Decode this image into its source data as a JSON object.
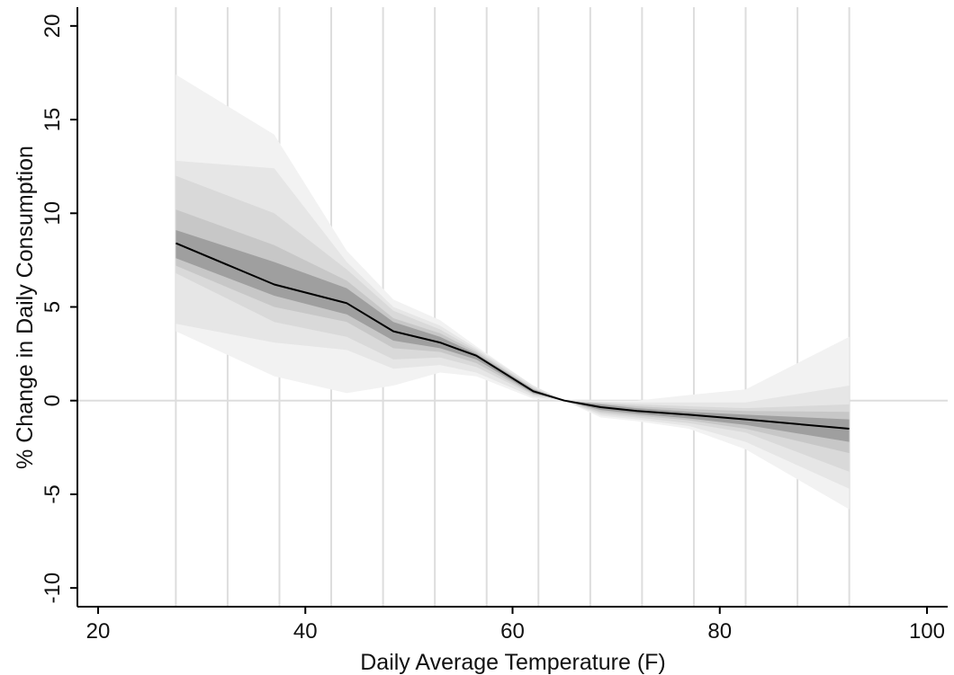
{
  "chart_data": {
    "type": "area",
    "title": "",
    "xlabel": "Daily Average Temperature (F)",
    "ylabel": "% Change in Daily Consumption",
    "xlim": [
      18,
      102
    ],
    "ylim": [
      -11,
      21
    ],
    "x_ticks": [
      20,
      40,
      60,
      80,
      100
    ],
    "y_ticks": [
      -10,
      -5,
      0,
      5,
      10,
      15,
      20
    ],
    "grid": "vertical light gray lines at bin boundaries; horizontal reference line at y = 0",
    "bin_boundaries": [
      27.5,
      32.5,
      37.5,
      42.5,
      47.5,
      52.5,
      57.5,
      62.5,
      67.5,
      72.5,
      77.5,
      82.5,
      87.5,
      92.5
    ],
    "x": [
      27.5,
      37,
      44,
      48.5,
      53,
      56.5,
      62,
      65,
      68.5,
      72,
      77,
      82.5,
      92.5
    ],
    "series": [
      {
        "values": [
          8.4,
          6.2,
          5.2,
          3.7,
          3.1,
          2.4,
          0.5,
          0.0,
          -0.35,
          -0.55,
          -0.75,
          -1.0,
          -1.5
        ],
        "color": "#000000"
      }
    ],
    "confidence_bands": [
      {
        "level": 1,
        "lower": [
          3.7,
          1.3,
          0.4,
          0.8,
          1.5,
          1.3,
          0.1,
          0.0,
          -0.9,
          -1.1,
          -1.5,
          -2.6,
          -5.8
        ],
        "upper": [
          17.4,
          14.2,
          8.0,
          5.4,
          4.3,
          2.9,
          0.8,
          0.0,
          0.0,
          0.0,
          0.3,
          0.6,
          3.4
        ],
        "color": "#f2f2f2"
      },
      {
        "level": 2,
        "lower": [
          4.1,
          3.1,
          2.7,
          1.7,
          1.9,
          1.5,
          0.2,
          0.0,
          -0.8,
          -1.0,
          -1.35,
          -2.2,
          -4.7
        ],
        "upper": [
          12.8,
          12.4,
          7.4,
          5.0,
          4.0,
          2.8,
          0.8,
          0.0,
          -0.05,
          -0.1,
          -0.1,
          -0.1,
          0.8
        ],
        "color": "#e6e6e6"
      },
      {
        "level": 3,
        "lower": [
          6.8,
          4.2,
          3.4,
          2.2,
          2.3,
          1.8,
          0.3,
          0.0,
          -0.7,
          -0.9,
          -1.2,
          -1.7,
          -3.8
        ],
        "upper": [
          12.0,
          10.0,
          7.0,
          4.8,
          3.8,
          2.7,
          0.7,
          0.0,
          -0.1,
          -0.2,
          -0.3,
          -0.4,
          -0.2
        ],
        "color": "#d9d9d9"
      },
      {
        "level": 4,
        "lower": [
          7.2,
          5.0,
          4.2,
          2.8,
          2.6,
          2.0,
          0.35,
          0.0,
          -0.6,
          -0.8,
          -1.05,
          -1.5,
          -2.8
        ],
        "upper": [
          10.2,
          8.3,
          6.4,
          4.4,
          3.6,
          2.6,
          0.65,
          0.0,
          -0.15,
          -0.3,
          -0.45,
          -0.55,
          -0.6
        ],
        "color": "#c7c7c7"
      },
      {
        "level": 5,
        "lower": [
          7.6,
          5.6,
          4.6,
          3.2,
          2.8,
          2.2,
          0.4,
          0.0,
          -0.5,
          -0.7,
          -0.95,
          -1.3,
          -2.2
        ],
        "upper": [
          9.1,
          7.4,
          6.0,
          4.2,
          3.4,
          2.5,
          0.6,
          0.0,
          -0.2,
          -0.4,
          -0.6,
          -0.75,
          -1.0
        ],
        "color": "#9f9f9f"
      }
    ]
  }
}
